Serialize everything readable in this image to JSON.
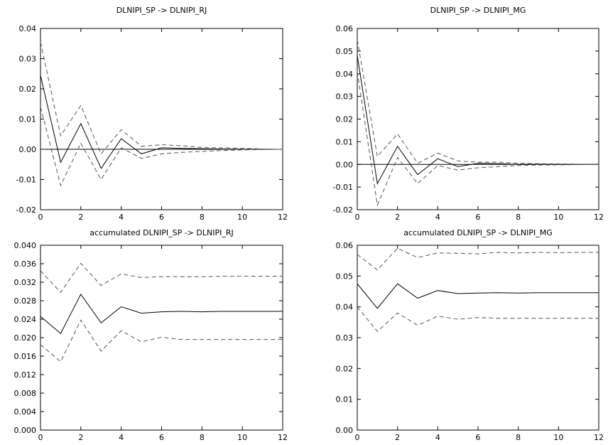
{
  "chart_data": [
    {
      "type": "line",
      "title": "DLNIPI_SP  -> DLNIPI_RJ",
      "x": [
        0,
        1,
        2,
        3,
        4,
        5,
        6,
        7,
        8,
        9,
        10,
        11,
        12
      ],
      "xlim": [
        0,
        12
      ],
      "ylim": [
        -0.02,
        0.04
      ],
      "xticks": [
        0,
        2,
        4,
        6,
        8,
        10,
        12
      ],
      "yticks": [
        -0.02,
        -0.01,
        0.0,
        0.01,
        0.02,
        0.03,
        0.04
      ],
      "ytick_labels": [
        "-0.02",
        "-0.01",
        "0.00",
        "0.01",
        "0.02",
        "0.03",
        "0.04"
      ],
      "zero_line": true,
      "series": [
        {
          "style": "solid",
          "values": [
            0.0245,
            -0.0043,
            0.0085,
            -0.0063,
            0.0035,
            -0.0015,
            0.0005,
            0.0003,
            0.0002,
            0.0001,
            0.0,
            0.0,
            0.0
          ]
        },
        {
          "style": "dashed",
          "values": [
            0.0355,
            0.0045,
            0.0145,
            -0.0015,
            0.0065,
            0.001,
            0.0015,
            0.0012,
            0.0006,
            0.0005,
            0.0003,
            0.0001,
            0.0
          ]
        },
        {
          "style": "dashed",
          "values": [
            0.014,
            -0.012,
            0.002,
            -0.01,
            0.0005,
            -0.003,
            -0.0015,
            -0.001,
            -0.0007,
            -0.0004,
            -0.0002,
            -0.0001,
            0.0
          ]
        }
      ]
    },
    {
      "type": "line",
      "title": "DLNIPI_SP  -> DLNIPI_MG",
      "x": [
        0,
        1,
        2,
        3,
        4,
        5,
        6,
        7,
        8,
        9,
        10,
        11,
        12
      ],
      "xlim": [
        0,
        12
      ],
      "ylim": [
        -0.02,
        0.06
      ],
      "xticks": [
        0,
        2,
        4,
        6,
        8,
        10,
        12
      ],
      "yticks": [
        -0.02,
        -0.01,
        0.0,
        0.01,
        0.02,
        0.03,
        0.04,
        0.05,
        0.06
      ],
      "ytick_labels": [
        "-0.02",
        "-0.01",
        "0.00",
        "0.01",
        "0.02",
        "0.03",
        "0.04",
        "0.05",
        "0.06"
      ],
      "zero_line": true,
      "series": [
        {
          "style": "solid",
          "values": [
            0.048,
            -0.0085,
            0.008,
            -0.0045,
            0.0025,
            -0.001,
            0.0005,
            0.0003,
            0.0,
            0.0001,
            0.0,
            0.0,
            0.0
          ]
        },
        {
          "style": "dashed",
          "values": [
            0.055,
            0.0035,
            0.0135,
            0.0005,
            0.005,
            0.0015,
            0.001,
            0.001,
            0.0005,
            0.0003,
            0.0002,
            0.0001,
            0.0
          ]
        },
        {
          "style": "dashed",
          "values": [
            0.041,
            -0.018,
            0.003,
            -0.0085,
            -0.0005,
            -0.0025,
            -0.0015,
            -0.001,
            -0.0005,
            -0.0003,
            -0.0002,
            -0.0001,
            0.0
          ]
        }
      ]
    },
    {
      "type": "line",
      "title": "accumulated DLNIPI_SP  -> DLNIPI_RJ",
      "x": [
        0,
        1,
        2,
        3,
        4,
        5,
        6,
        7,
        8,
        9,
        10,
        11,
        12
      ],
      "xlim": [
        0,
        12
      ],
      "ylim": [
        0,
        0.04
      ],
      "xticks": [
        0,
        2,
        4,
        6,
        8,
        10,
        12
      ],
      "yticks": [
        0.0,
        0.004,
        0.008,
        0.012,
        0.016,
        0.02,
        0.024,
        0.028,
        0.032,
        0.036,
        0.04
      ],
      "ytick_labels": [
        "0.000",
        "0.004",
        "0.008",
        "0.012",
        "0.016",
        "0.020",
        "0.024",
        "0.028",
        "0.032",
        "0.036",
        "0.040"
      ],
      "zero_line": false,
      "series": [
        {
          "style": "solid",
          "values": [
            0.0246,
            0.0209,
            0.0294,
            0.0232,
            0.0267,
            0.0253,
            0.0256,
            0.0257,
            0.0256,
            0.0257,
            0.0257,
            0.0257,
            0.0257
          ]
        },
        {
          "style": "dashed",
          "values": [
            0.0345,
            0.0298,
            0.0361,
            0.0313,
            0.0338,
            0.033,
            0.0332,
            0.0332,
            0.0332,
            0.0333,
            0.0333,
            0.0333,
            0.0333
          ]
        },
        {
          "style": "dashed",
          "values": [
            0.0185,
            0.0148,
            0.0238,
            0.0171,
            0.0215,
            0.0191,
            0.0201,
            0.0196,
            0.0196,
            0.0196,
            0.0196,
            0.0196,
            0.0196
          ]
        }
      ]
    },
    {
      "type": "line",
      "title": "accumulated DLNIPI_SP  -> DLNIPI_MG",
      "x": [
        0,
        1,
        2,
        3,
        4,
        5,
        6,
        7,
        8,
        9,
        10,
        11,
        12
      ],
      "xlim": [
        0,
        12
      ],
      "ylim": [
        0,
        0.06
      ],
      "xticks": [
        0,
        2,
        4,
        6,
        8,
        10,
        12
      ],
      "yticks": [
        0.0,
        0.01,
        0.02,
        0.03,
        0.04,
        0.05,
        0.06
      ],
      "ytick_labels": [
        "0.00",
        "0.01",
        "0.02",
        "0.03",
        "0.04",
        "0.05",
        "0.06"
      ],
      "zero_line": false,
      "series": [
        {
          "style": "solid",
          "values": [
            0.0475,
            0.0395,
            0.0475,
            0.0428,
            0.0453,
            0.0443,
            0.0445,
            0.0446,
            0.0445,
            0.0446,
            0.0446,
            0.0446,
            0.0446
          ]
        },
        {
          "style": "dashed",
          "values": [
            0.057,
            0.052,
            0.059,
            0.056,
            0.0575,
            0.0574,
            0.0572,
            0.0577,
            0.0575,
            0.0577,
            0.0576,
            0.0577,
            0.0577
          ]
        },
        {
          "style": "dashed",
          "values": [
            0.04,
            0.032,
            0.038,
            0.034,
            0.037,
            0.036,
            0.0365,
            0.0363,
            0.0363,
            0.0363,
            0.0363,
            0.0363,
            0.0363
          ]
        }
      ]
    }
  ]
}
